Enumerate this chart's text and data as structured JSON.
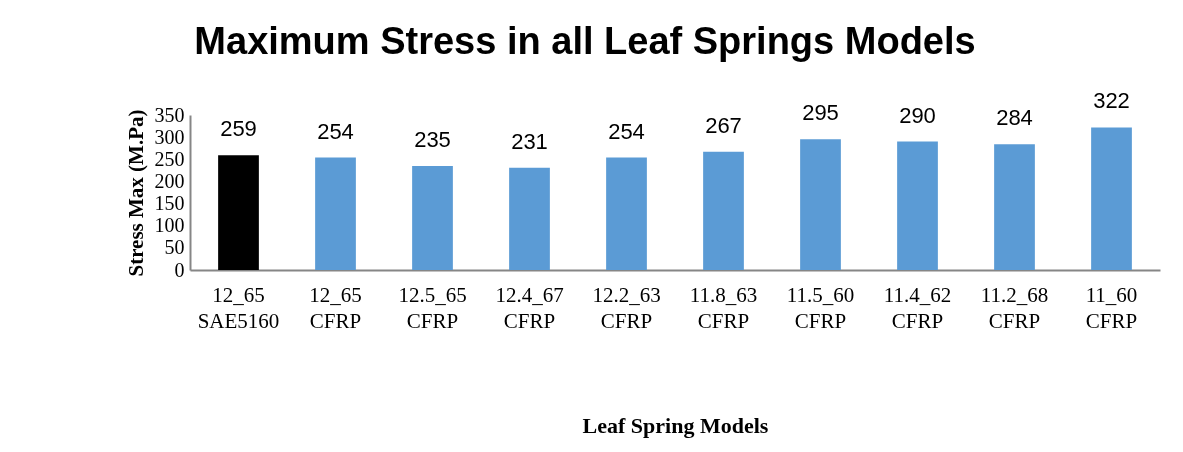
{
  "chart_data": {
    "type": "bar",
    "title": "Maximum Stress in all Leaf Springs Models",
    "xlabel": "Leaf Spring Models",
    "ylabel": "Stress Max  (M.Pa)",
    "categories": [
      "12_65\nSAE5160",
      "12_65\nCFRP",
      "12.5_65\nCFRP",
      "12.4_67\nCFRP",
      "12.2_63\nCFRP",
      "11.8_63\nCFRP",
      "11.5_60\nCFRP",
      "11.4_62\nCFRP",
      "11.2_68\nCFRP",
      "11_60\nCFRP"
    ],
    "values": [
      259,
      254,
      235,
      231,
      254,
      267,
      295,
      290,
      284,
      322
    ],
    "colors": [
      "#000000",
      "#5b9bd5",
      "#5b9bd5",
      "#5b9bd5",
      "#5b9bd5",
      "#5b9bd5",
      "#5b9bd5",
      "#5b9bd5",
      "#5b9bd5",
      "#5b9bd5"
    ],
    "ylim": [
      0,
      350
    ],
    "yticks": [
      0,
      50,
      100,
      150,
      200,
      250,
      300,
      350
    ],
    "grid": false,
    "legend": false,
    "data_labels": true
  }
}
